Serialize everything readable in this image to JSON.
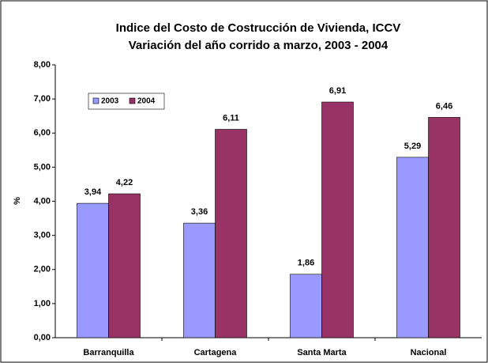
{
  "chart_data": {
    "type": "bar",
    "title": "Indice del  Costo de Costrucción de Vivienda, ICCV",
    "subtitle": "Variación del año corrido a marzo, 2003 - 2004",
    "y_label": "%",
    "categories": [
      "Barranquilla",
      "Cartagena",
      "Santa Marta",
      "Nacional"
    ],
    "series": [
      {
        "name": "2003",
        "color": "#9999ff",
        "values": [
          3.94,
          3.36,
          1.86,
          5.29
        ],
        "value_labels": [
          "3,94",
          "3,36",
          "1,86",
          "5,29"
        ]
      },
      {
        "name": "2004",
        "color": "#993366",
        "values": [
          4.22,
          6.11,
          6.91,
          6.46
        ],
        "value_labels": [
          "4,22",
          "6,11",
          "6,91",
          "6,46"
        ]
      }
    ],
    "ylim": [
      0,
      8
    ],
    "yticks": [
      {
        "value": 0,
        "label": "0,00"
      },
      {
        "value": 1,
        "label": "1,00"
      },
      {
        "value": 2,
        "label": "2,00"
      },
      {
        "value": 3,
        "label": "3,00"
      },
      {
        "value": 4,
        "label": "4,00"
      },
      {
        "value": 5,
        "label": "5,00"
      },
      {
        "value": 6,
        "label": "6,00"
      },
      {
        "value": 7,
        "label": "7,00"
      },
      {
        "value": 8,
        "label": "8,00"
      }
    ],
    "grid": false,
    "legend": "top-left"
  }
}
